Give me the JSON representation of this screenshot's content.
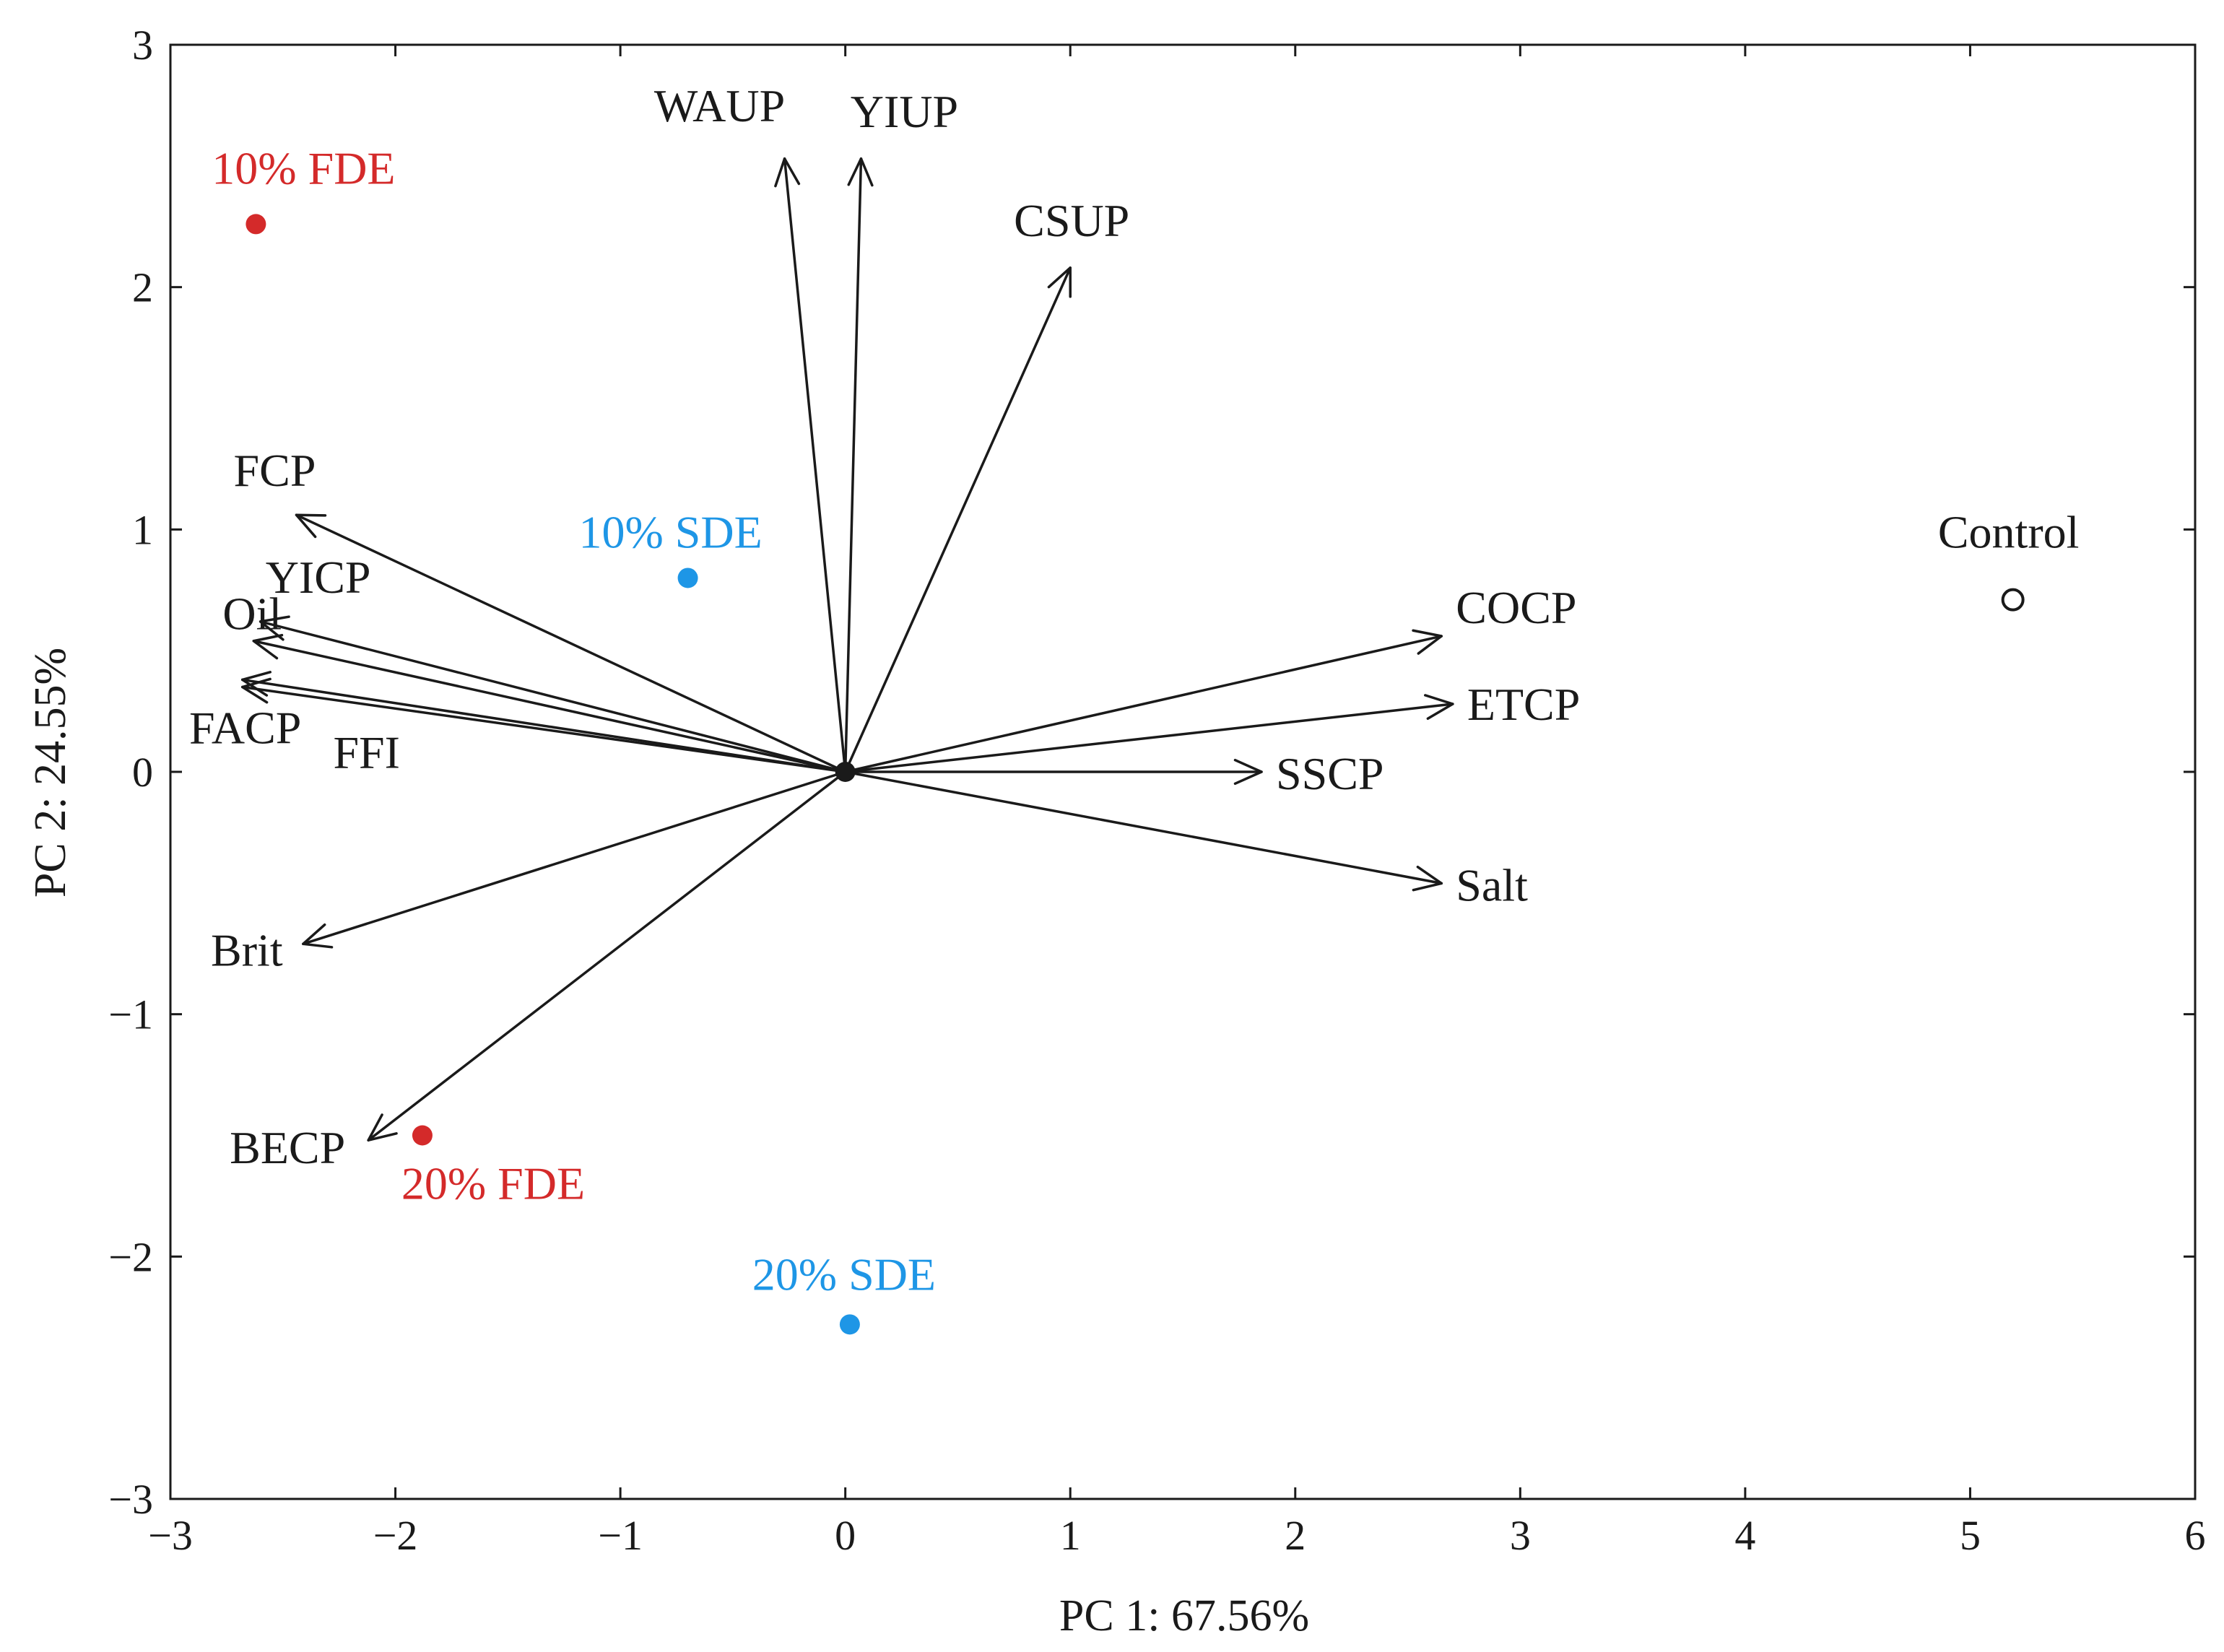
{
  "chart_data": {
    "type": "scatter",
    "subtype": "pca-biplot",
    "title": "",
    "xlabel": "PC 1: 67.56%",
    "ylabel": "PC 2: 24.55%",
    "xlim": [
      -3,
      6
    ],
    "ylim": [
      -3,
      3
    ],
    "x_ticks": [
      -3,
      -2,
      -1,
      0,
      1,
      2,
      3,
      4,
      5,
      6
    ],
    "y_ticks": [
      -3,
      -2,
      -1,
      0,
      1,
      2,
      3
    ],
    "x_tick_labels": [
      "−3",
      "−2",
      "−1",
      "0",
      "1",
      "2",
      "3",
      "4",
      "5",
      "6"
    ],
    "y_tick_labels": [
      "−3",
      "−2",
      "−1",
      "0",
      "1",
      "2",
      "3"
    ],
    "grid": false,
    "origin": [
      0,
      0
    ],
    "loadings": [
      {
        "name": "WAUP",
        "x": -0.27,
        "y": 2.53
      },
      {
        "name": "YIUP",
        "x": 0.07,
        "y": 2.53
      },
      {
        "name": "CSUP",
        "x": 1.0,
        "y": 2.08
      },
      {
        "name": "FCP",
        "x": -2.44,
        "y": 1.06
      },
      {
        "name": "YICP",
        "x": -2.6,
        "y": 0.62
      },
      {
        "name": "Oil",
        "x": -2.63,
        "y": 0.54
      },
      {
        "name": "FACP",
        "x": -2.68,
        "y": 0.38
      },
      {
        "name": "FFI",
        "x": -2.68,
        "y": 0.35
      },
      {
        "name": "Brit",
        "x": -2.41,
        "y": -0.71
      },
      {
        "name": "BECP",
        "x": -2.12,
        "y": -1.52
      },
      {
        "name": "COCP",
        "x": 2.65,
        "y": 0.56
      },
      {
        "name": "ETCP",
        "x": 2.7,
        "y": 0.28
      },
      {
        "name": "SSCP",
        "x": 1.85,
        "y": 0.0
      },
      {
        "name": "Salt",
        "x": 2.65,
        "y": -0.46
      }
    ],
    "observations": [
      {
        "name": "10% FDE",
        "x": -2.62,
        "y": 2.26,
        "color": "#d42a2a",
        "filled": true
      },
      {
        "name": "20% FDE",
        "x": -1.88,
        "y": -1.5,
        "color": "#d42a2a",
        "filled": true
      },
      {
        "name": "10% SDE",
        "x": -0.7,
        "y": 0.8,
        "color": "#1e96e6",
        "filled": true
      },
      {
        "name": "20% SDE",
        "x": 0.02,
        "y": -2.28,
        "color": "#1e96e6",
        "filled": true
      },
      {
        "name": "Control",
        "x": 5.19,
        "y": 0.71,
        "color": "#1a1a1a",
        "filled": false
      }
    ],
    "colors": {
      "axis": "#1a1a1a",
      "arrow": "#1a1a1a",
      "fde": "#d42a2a",
      "sde": "#1e96e6"
    }
  }
}
